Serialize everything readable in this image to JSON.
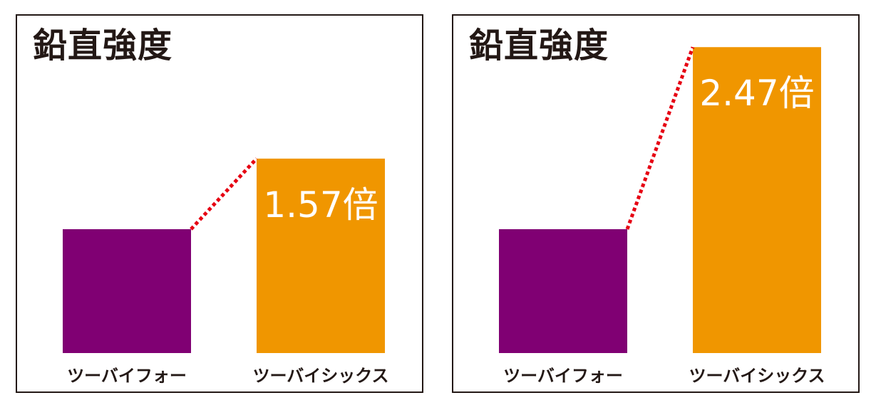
{
  "chart_data": [
    {
      "type": "bar",
      "title": "鉛直強度",
      "categories": [
        "ツーバイフォー",
        "ツーバイシックス"
      ],
      "values": [
        1.0,
        1.57
      ],
      "colors": [
        "#800073",
        "#f09600"
      ],
      "bar_label": "1.57倍",
      "connector": {
        "style": "dotted",
        "color": "#e60012"
      },
      "grid": false,
      "legend": "none"
    },
    {
      "type": "bar",
      "title": "鉛直強度",
      "categories": [
        "ツーバイフォー",
        "ツーバイシックス"
      ],
      "values": [
        1.0,
        2.47
      ],
      "colors": [
        "#800073",
        "#f09600"
      ],
      "bar_label": "2.47倍",
      "connector": {
        "style": "dotted",
        "color": "#e60012"
      },
      "grid": false,
      "legend": "none"
    }
  ]
}
